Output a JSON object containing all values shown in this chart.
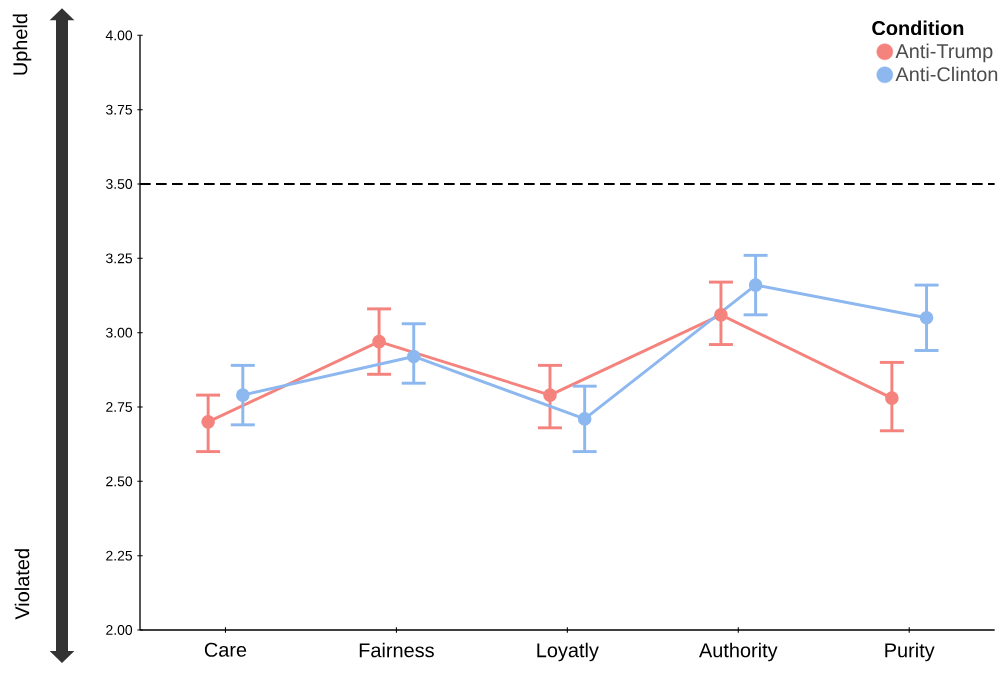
{
  "chart_data": {
    "type": "line",
    "categories": [
      "Care",
      "Fairness",
      "Loyatly",
      "Authority",
      "Purity"
    ],
    "series": [
      {
        "name": "Anti-Trump",
        "color": "#f4837d",
        "values": [
          2.7,
          2.97,
          2.79,
          3.06,
          2.78
        ],
        "errors": [
          [
            2.6,
            2.79
          ],
          [
            2.86,
            3.08
          ],
          [
            2.68,
            2.89
          ],
          [
            2.96,
            3.17
          ],
          [
            2.67,
            2.9
          ]
        ]
      },
      {
        "name": "Anti-Clinton",
        "color": "#8db8ef",
        "values": [
          2.79,
          2.92,
          2.71,
          3.16,
          3.05
        ],
        "errors": [
          [
            2.69,
            2.89
          ],
          [
            2.83,
            3.03
          ],
          [
            2.6,
            2.82
          ],
          [
            3.06,
            3.26
          ],
          [
            2.94,
            3.16
          ]
        ]
      }
    ],
    "ylim": [
      2.0,
      4.0
    ],
    "yticks": [
      {
        "value": 2.0,
        "label": "2.00"
      },
      {
        "value": 2.25,
        "label": "2.25"
      },
      {
        "value": 2.5,
        "label": "2.50"
      },
      {
        "value": 2.75,
        "label": "2.75"
      },
      {
        "value": 3.0,
        "label": "3.00"
      },
      {
        "value": 3.25,
        "label": "3.25"
      },
      {
        "value": 3.5,
        "label": "3.50"
      },
      {
        "value": 3.75,
        "label": "3.75"
      },
      {
        "value": 4.0,
        "label": "4.00"
      }
    ],
    "ref_lines": [
      {
        "axis": "y",
        "value": 3.5,
        "color": "#000000",
        "line_style": "dashed"
      }
    ],
    "legend": "top right",
    "legend_title": "Condition",
    "marker": "circle",
    "line_style": "solid",
    "grid": false,
    "annotations": [
      "Upheld",
      "Violated"
    ]
  }
}
